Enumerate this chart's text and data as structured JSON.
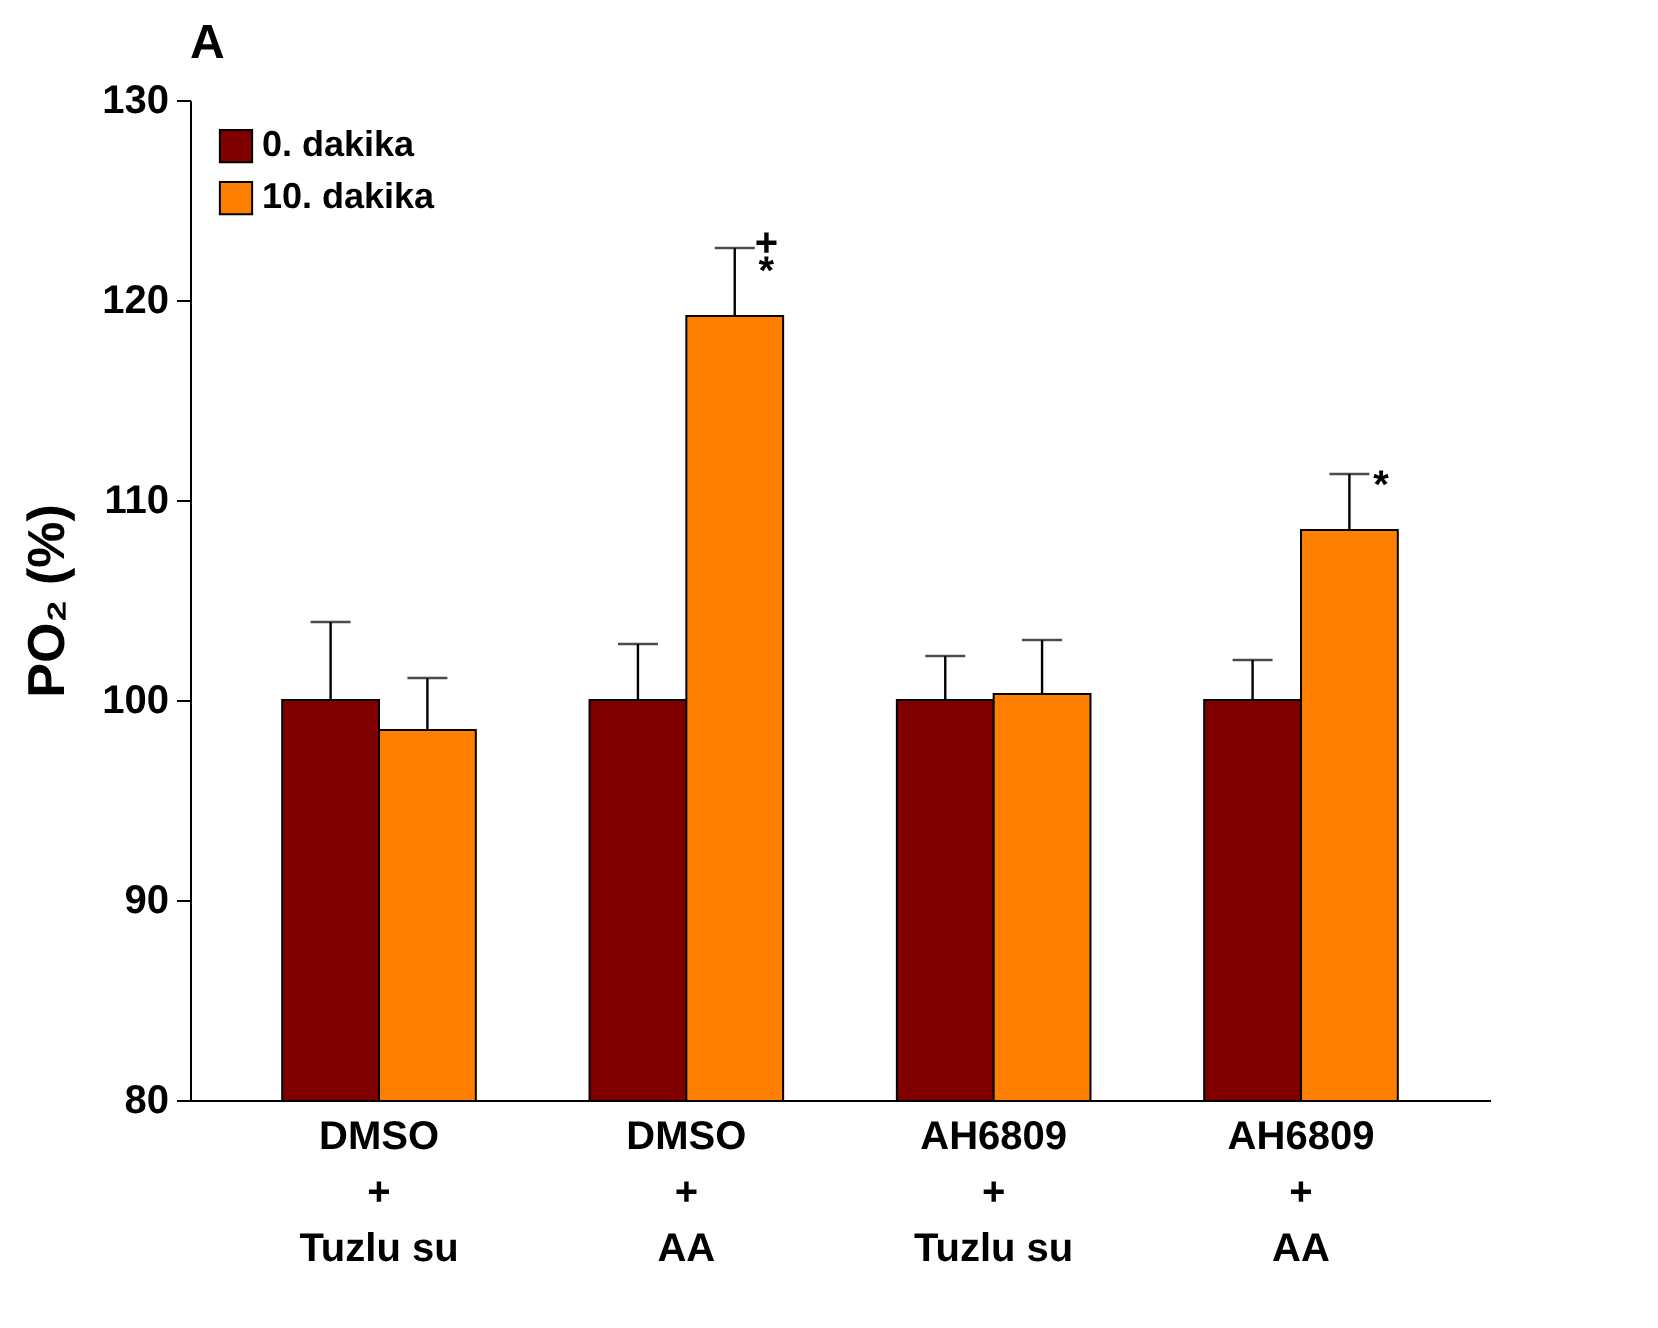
{
  "chart_data": {
    "type": "bar",
    "title": "A",
    "ylabel": "PO₂ (%)",
    "categories": [
      "DMSO\n+\nTuzlu su",
      "DMSO\n+\nAA",
      "AH6809\n+\nTuzlu su",
      "AH6809\n+\nAA"
    ],
    "series": [
      {
        "name": "0. dakika",
        "color": "#800000",
        "values": [
          100,
          100,
          100,
          100
        ],
        "errors": [
          [
            100,
            103.9
          ],
          [
            100,
            102.8
          ],
          [
            100,
            102.2
          ],
          [
            100,
            102.0
          ]
        ]
      },
      {
        "name": "10. dakika",
        "color": "#ff8000",
        "values": [
          98.5,
          119.2,
          100.3,
          108.5
        ],
        "errors": [
          [
            98.5,
            101.1
          ],
          [
            119.2,
            122.6
          ],
          [
            100.3,
            103.0
          ],
          [
            108.5,
            111.3
          ]
        ]
      }
    ],
    "ylim": [
      80,
      130
    ],
    "yticks": [
      80,
      90,
      100,
      110,
      120,
      130
    ],
    "grid": false,
    "legend": "top left",
    "annotations": [
      {
        "text": "+",
        "x": "DMSO\n+\nAA",
        "y": 119.2
      },
      {
        "text": "*",
        "x": "DMSO\n+\nAA",
        "y": 119.2
      },
      {
        "text": "*",
        "x": "AH6809\n+\nAA",
        "y": 108.5
      }
    ]
  }
}
